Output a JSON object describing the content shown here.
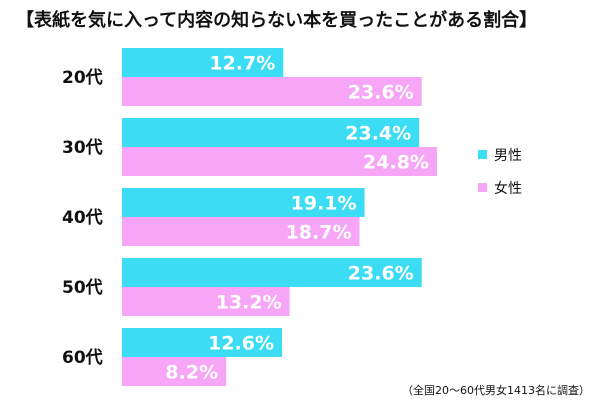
{
  "chart_data": {
    "type": "bar",
    "orientation": "horizontal",
    "title": "【表紙を気に入って内容の知らない本を買ったことがある割合】",
    "note": "（全国20～60代男女1413名に調査）",
    "categories": [
      "20代",
      "30代",
      "40代",
      "50代",
      "60代"
    ],
    "value_suffix": "%",
    "series": [
      {
        "name": "男性",
        "color": "#3ddcf5",
        "values": [
          12.7,
          23.4,
          19.1,
          23.6,
          12.6
        ]
      },
      {
        "name": "女性",
        "color": "#f7a6f7",
        "values": [
          23.6,
          24.8,
          18.7,
          13.2,
          8.2
        ]
      }
    ],
    "xlim": [
      0,
      30
    ],
    "grid": false,
    "legend_position": "right"
  }
}
